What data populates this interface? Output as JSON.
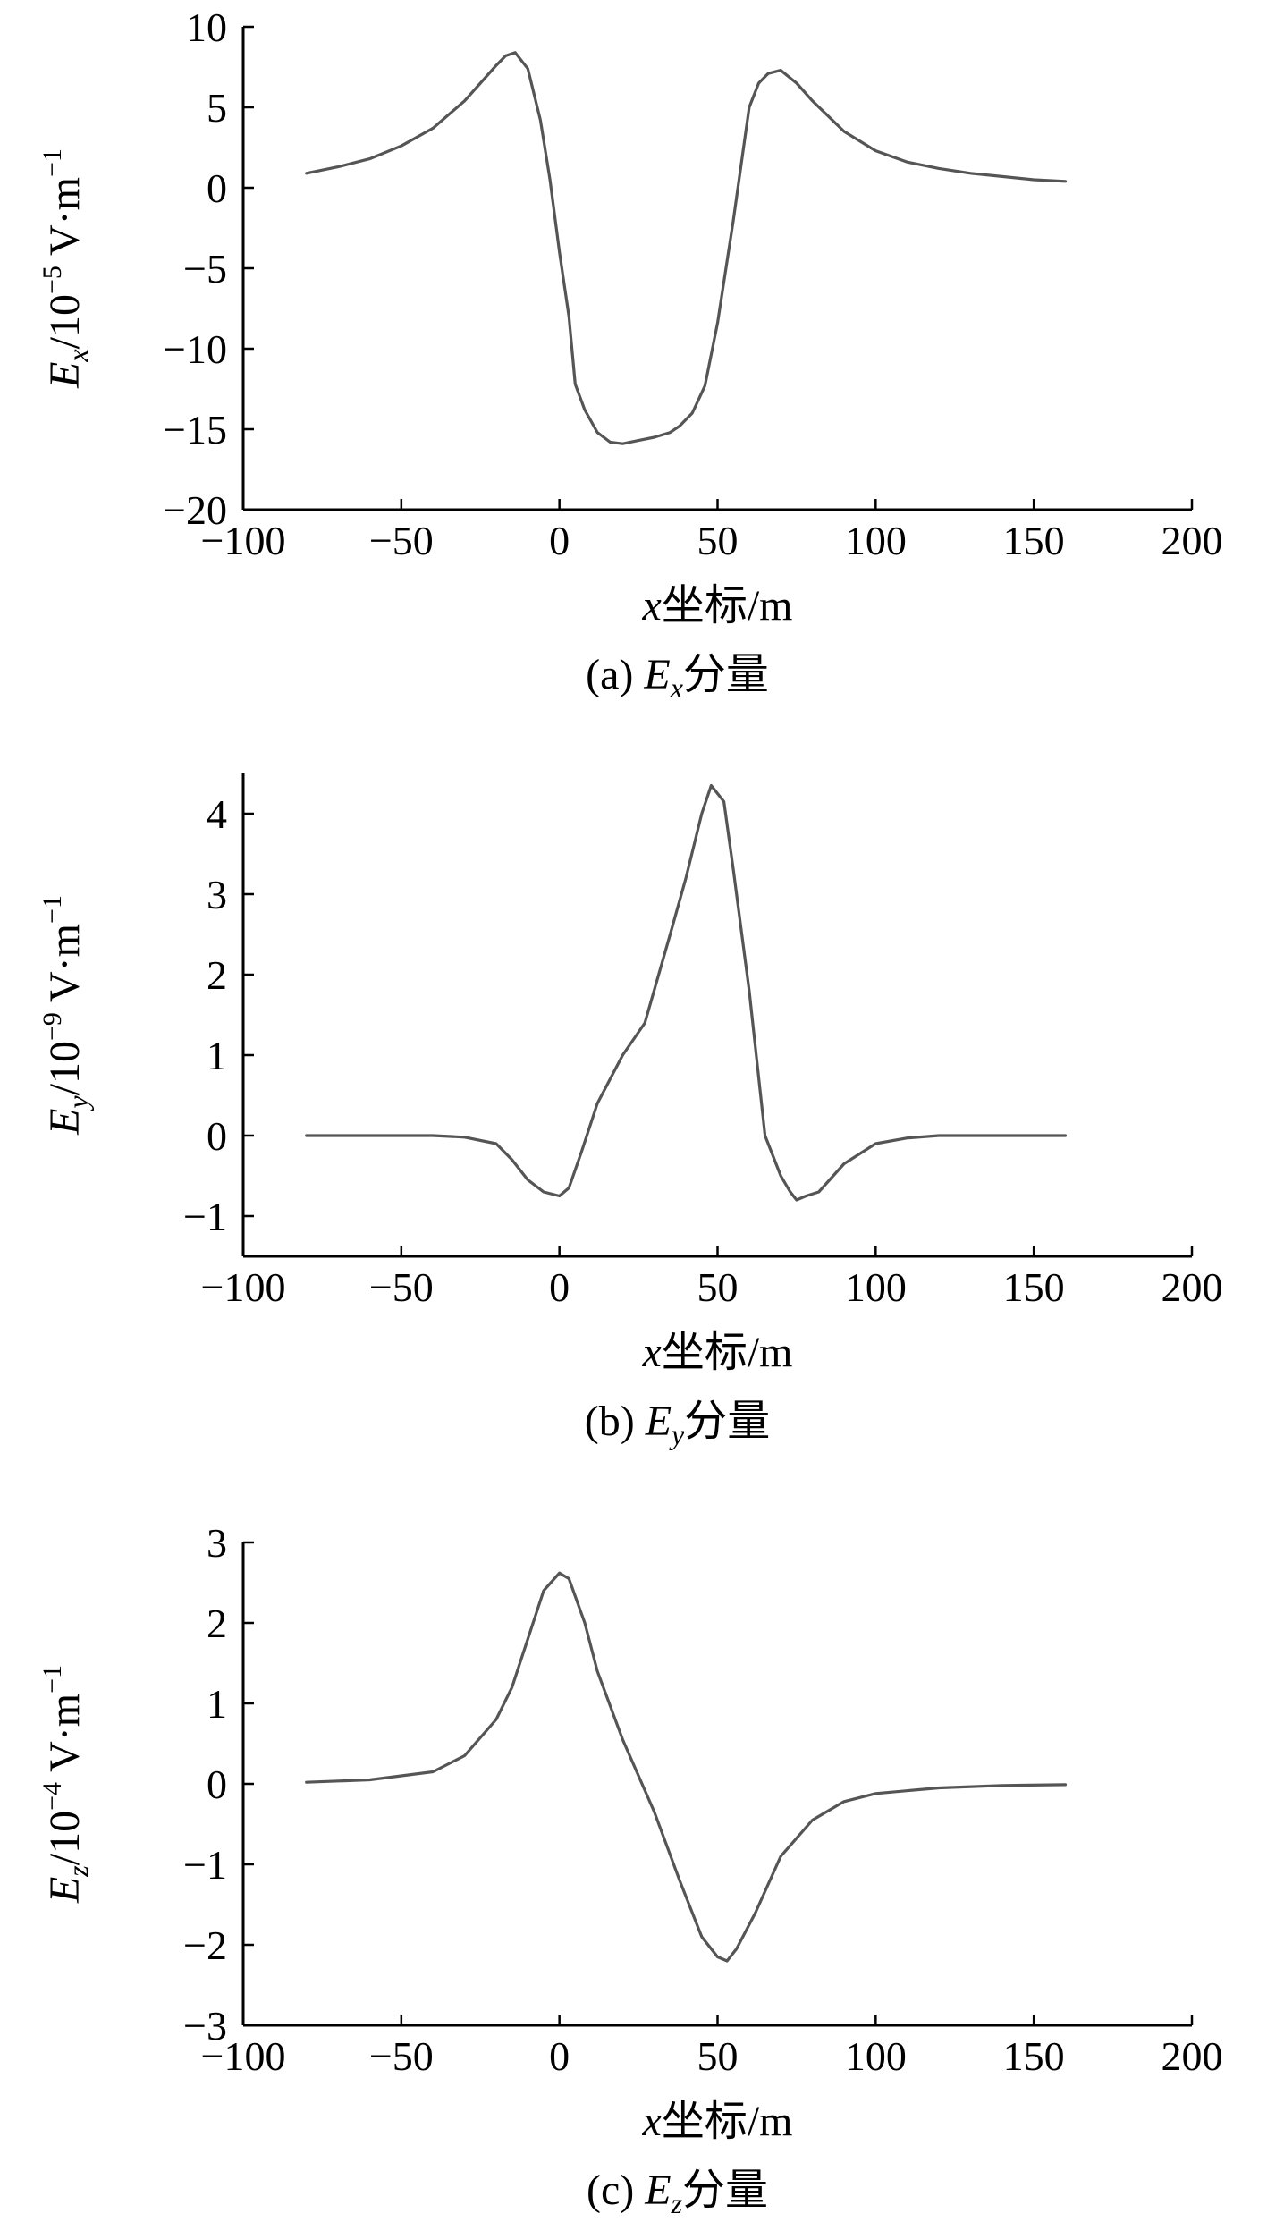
{
  "chart_data": [
    {
      "type": "line",
      "ylabel": {
        "main": "E",
        "sub": "x",
        "rest": "/10",
        "exp": "−5",
        "unit": " V·m",
        "unitexp": "−1"
      },
      "xlabel": {
        "var": "x",
        "text": "坐标/m"
      },
      "caption": {
        "prefix": "(a) ",
        "var": "E",
        "sub": "x",
        "suffix": "分量"
      },
      "xlim": [
        -100,
        200
      ],
      "ylim": [
        -20,
        10
      ],
      "xticks": [
        -100,
        -50,
        0,
        50,
        100,
        150,
        200
      ],
      "xtick_labels": [
        "−100",
        "−50",
        "0",
        "50",
        "100",
        "150",
        "200"
      ],
      "yticks": [
        -20,
        -15,
        -10,
        -5,
        0,
        5,
        10
      ],
      "ytick_labels": [
        "−20",
        "−15",
        "−10",
        "−5",
        "0",
        "5",
        "10"
      ],
      "grid": false,
      "series": [
        {
          "color": "#555555",
          "x": [
            -80,
            -70,
            -60,
            -50,
            -40,
            -30,
            -25,
            -20,
            -17,
            -14,
            -10,
            -6,
            -3,
            0,
            3,
            5,
            8,
            12,
            16,
            20,
            25,
            30,
            35,
            38,
            42,
            46,
            50,
            55,
            60,
            63,
            66,
            70,
            75,
            80,
            90,
            100,
            110,
            120,
            130,
            140,
            150,
            160
          ],
          "y": [
            0.9,
            1.3,
            1.8,
            2.6,
            3.7,
            5.4,
            6.5,
            7.6,
            8.2,
            8.4,
            7.4,
            4.2,
            0.5,
            -4.0,
            -8.0,
            -12.2,
            -13.8,
            -15.2,
            -15.8,
            -15.9,
            -15.7,
            -15.5,
            -15.2,
            -14.8,
            -14.0,
            -12.3,
            -8.4,
            -2.0,
            5.0,
            6.5,
            7.1,
            7.3,
            6.5,
            5.4,
            3.5,
            2.3,
            1.6,
            1.2,
            0.9,
            0.7,
            0.5,
            0.4
          ]
        }
      ]
    },
    {
      "type": "line",
      "ylabel": {
        "main": "E",
        "sub": "y",
        "rest": "/10",
        "exp": "−9",
        "unit": " V·m",
        "unitexp": "−1"
      },
      "xlabel": {
        "var": "x",
        "text": "坐标/m"
      },
      "caption": {
        "prefix": "(b) ",
        "var": "E",
        "sub": "y",
        "suffix": "分量"
      },
      "xlim": [
        -100,
        200
      ],
      "ylim": [
        -1.5,
        4.5
      ],
      "xticks": [
        -100,
        -50,
        0,
        50,
        100,
        150,
        200
      ],
      "xtick_labels": [
        "−100",
        "−50",
        "0",
        "50",
        "100",
        "150",
        "200"
      ],
      "yticks": [
        -1,
        0,
        1,
        2,
        3,
        4
      ],
      "ytick_labels": [
        "−1",
        "0",
        "1",
        "2",
        "3",
        "4"
      ],
      "grid": false,
      "series": [
        {
          "color": "#555555",
          "x": [
            -80,
            -60,
            -40,
            -30,
            -20,
            -15,
            -10,
            -5,
            0,
            3,
            7,
            12,
            20,
            27,
            35,
            40,
            45,
            48,
            52,
            55,
            60,
            65,
            70,
            73,
            75,
            78,
            82,
            90,
            100,
            110,
            120,
            140,
            160
          ],
          "y": [
            0,
            0,
            0,
            -0.02,
            -0.1,
            -0.3,
            -0.55,
            -0.7,
            -0.75,
            -0.65,
            -0.2,
            0.4,
            1.0,
            1.4,
            2.5,
            3.2,
            4.0,
            4.35,
            4.15,
            3.3,
            1.8,
            0.0,
            -0.5,
            -0.7,
            -0.8,
            -0.75,
            -0.7,
            -0.35,
            -0.1,
            -0.03,
            0,
            0,
            0
          ]
        }
      ]
    },
    {
      "type": "line",
      "ylabel": {
        "main": "E",
        "sub": "z",
        "rest": "/10",
        "exp": "−4",
        "unit": " V·m",
        "unitexp": "−1"
      },
      "xlabel": {
        "var": "x",
        "text": "坐标/m"
      },
      "caption": {
        "prefix": "(c) ",
        "var": "E",
        "sub": "z",
        "suffix": "分量"
      },
      "xlim": [
        -100,
        200
      ],
      "ylim": [
        -3,
        3
      ],
      "xticks": [
        -100,
        -50,
        0,
        50,
        100,
        150,
        200
      ],
      "xtick_labels": [
        "−100",
        "−50",
        "0",
        "50",
        "100",
        "150",
        "200"
      ],
      "yticks": [
        -3,
        -2,
        -1,
        0,
        1,
        2,
        3
      ],
      "ytick_labels": [
        "−3",
        "−2",
        "−1",
        "0",
        "1",
        "2",
        "3"
      ],
      "grid": false,
      "series": [
        {
          "color": "#555555",
          "x": [
            -80,
            -60,
            -40,
            -30,
            -20,
            -15,
            -10,
            -5,
            0,
            3,
            8,
            12,
            20,
            30,
            38,
            45,
            50,
            53,
            56,
            62,
            70,
            80,
            90,
            100,
            120,
            140,
            160
          ],
          "y": [
            0.02,
            0.05,
            0.15,
            0.35,
            0.8,
            1.2,
            1.8,
            2.4,
            2.62,
            2.55,
            2.0,
            1.4,
            0.55,
            -0.35,
            -1.2,
            -1.9,
            -2.15,
            -2.2,
            -2.05,
            -1.6,
            -0.9,
            -0.45,
            -0.22,
            -0.12,
            -0.05,
            -0.02,
            -0.01
          ]
        }
      ]
    }
  ]
}
